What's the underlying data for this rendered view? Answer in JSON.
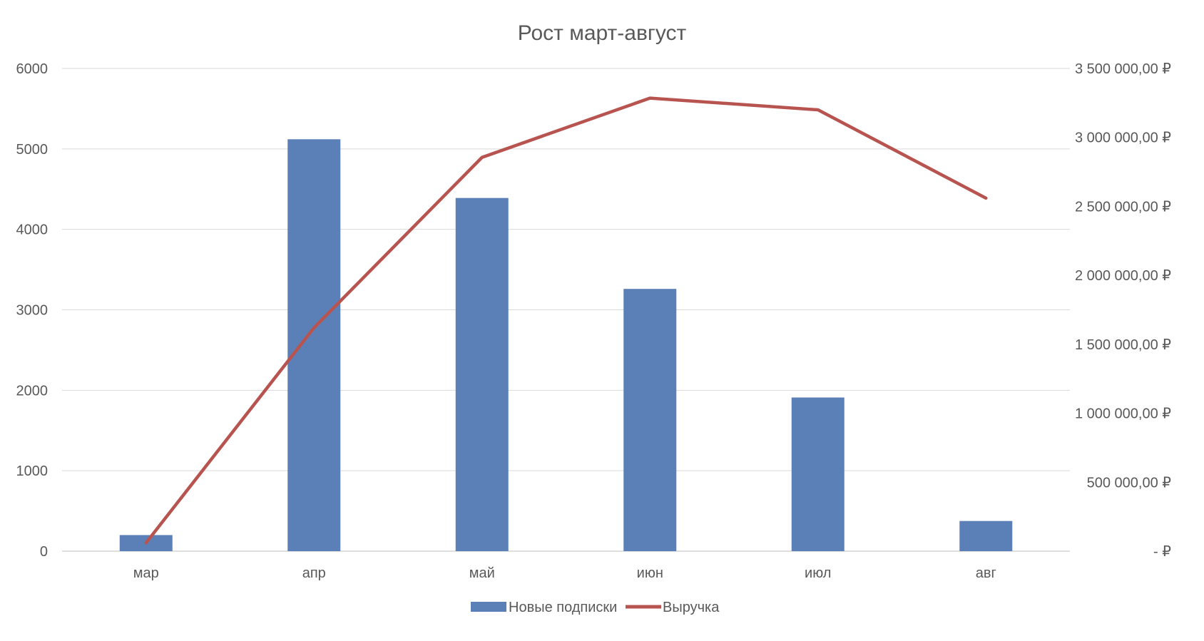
{
  "chart_data": {
    "type": "bar",
    "title": "Рост март-август",
    "categories": [
      "мар",
      "апр",
      "май",
      "июн",
      "июл",
      "авг"
    ],
    "series": [
      {
        "name": "Новые подписки",
        "type": "bar",
        "axis": "left",
        "color": "#5B80B8",
        "values": [
          200,
          5120,
          4390,
          3260,
          1910,
          375
        ]
      },
      {
        "name": "Выручка",
        "type": "line",
        "axis": "right",
        "color": "#B85450",
        "values": [
          60000,
          1620000,
          2855000,
          3285000,
          3200000,
          2560000
        ]
      }
    ],
    "y_left": {
      "range": [
        0,
        6000
      ],
      "ticks": [
        0,
        1000,
        2000,
        3000,
        4000,
        5000,
        6000
      ],
      "tick_labels": [
        "0",
        "1000",
        "2000",
        "3000",
        "4000",
        "5000",
        "6000"
      ]
    },
    "y_right": {
      "range": [
        0,
        3500000
      ],
      "ticks": [
        0,
        500000,
        1000000,
        1500000,
        2000000,
        2500000,
        3000000,
        3500000
      ],
      "tick_labels": [
        "-  ₽",
        "500 000,00 ₽",
        "1 000 000,00 ₽",
        "1 500 000,00 ₽",
        "2 000 000,00 ₽",
        "2 500 000,00 ₽",
        "3 000 000,00 ₽",
        "3 500 000,00 ₽"
      ]
    },
    "xlabel": "",
    "ylabel": "",
    "grid": true,
    "legend_position": "bottom"
  }
}
